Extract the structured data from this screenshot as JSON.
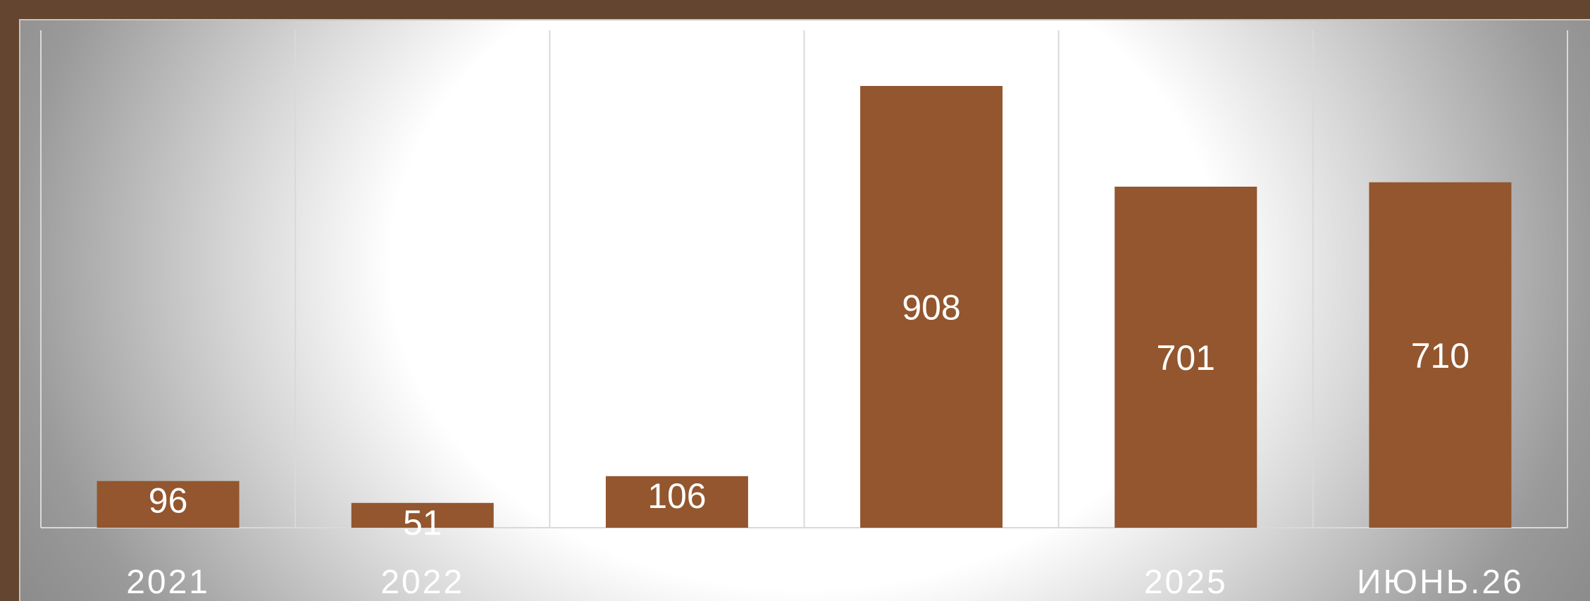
{
  "colors": {
    "page_background": "#634530",
    "bar": "#93562e",
    "bar_label": "#ffffff",
    "category_label": "#ffffff",
    "gridline": "#d9d9d9"
  },
  "chart_data": {
    "type": "bar",
    "categories": [
      "2021",
      "2022",
      "",
      "",
      "2025",
      "ИЮНЬ.26"
    ],
    "values": [
      96,
      51,
      106,
      908,
      701,
      710
    ],
    "data_labels": [
      "96",
      "51",
      "106",
      "908",
      "701",
      "710"
    ],
    "ylim": [
      0,
      1000
    ],
    "grid": "vertical",
    "legend": "none"
  }
}
